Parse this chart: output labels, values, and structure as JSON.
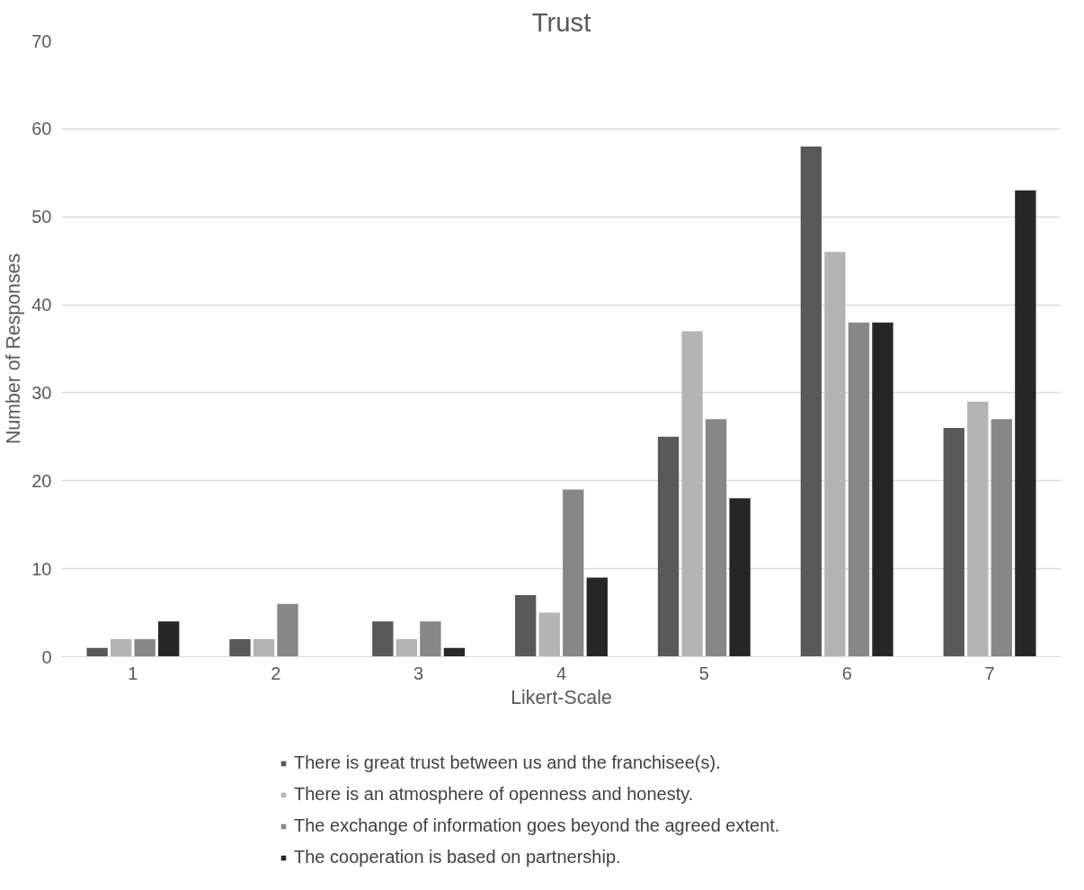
{
  "chart_data": {
    "type": "bar",
    "title": "Trust",
    "xlabel": "Likert-Scale",
    "ylabel": "Number of Responses",
    "categories": [
      "1",
      "2",
      "3",
      "4",
      "5",
      "6",
      "7"
    ],
    "series": [
      {
        "name": "There is great trust between us and the franchisee(s).",
        "color": "#595959",
        "values": [
          1,
          2,
          4,
          7,
          25,
          58,
          26
        ]
      },
      {
        "name": "There is an atmosphere of openness and honesty.",
        "color": "#b4b4b4",
        "values": [
          2,
          2,
          2,
          5,
          37,
          46,
          29
        ]
      },
      {
        "name": "The exchange of information goes beyond the agreed extent.",
        "color": "#878787",
        "values": [
          2,
          6,
          4,
          19,
          27,
          38,
          27
        ]
      },
      {
        "name": "The cooperation is based on partnership.",
        "color": "#262626",
        "values": [
          4,
          0,
          1,
          9,
          18,
          38,
          53
        ]
      }
    ],
    "ylim": [
      0,
      70
    ],
    "yticks": [
      0,
      10,
      20,
      30,
      40,
      50,
      60,
      70
    ],
    "grid": "y",
    "legend": "bottom"
  }
}
